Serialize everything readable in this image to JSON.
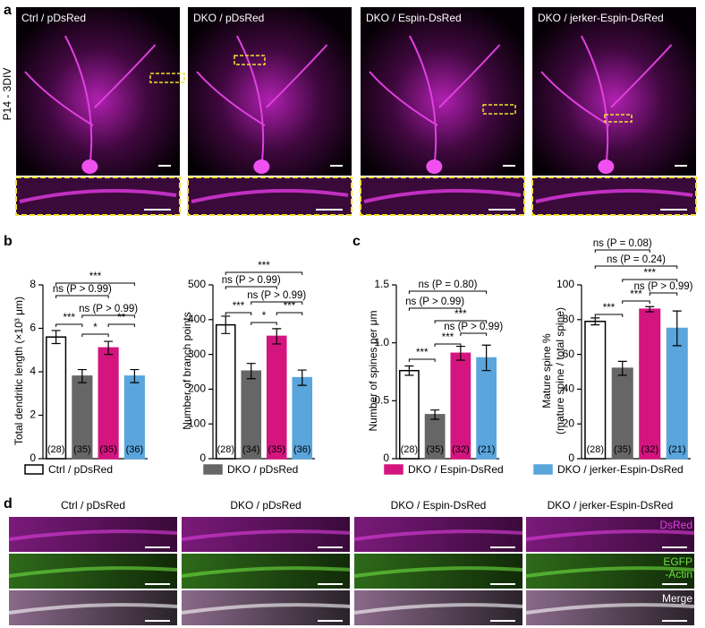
{
  "panel_labels": [
    "a",
    "b",
    "c",
    "d"
  ],
  "panel_a": {
    "side_label": "P14 - 3DIV",
    "titles": [
      "Ctrl / pDsRed",
      "DKO / pDsRed",
      "DKO / Espin-DsRed",
      "DKO / jerker-Espin-DsRed"
    ]
  },
  "legend": {
    "names": [
      "Ctrl / pDsRed",
      "DKO / pDsRed",
      "DKO / Espin-DsRed",
      "DKO / jerker-Espin-DsRed"
    ],
    "colors": [
      "#ffffff",
      "#666666",
      "#d4157f",
      "#5aa5dc"
    ]
  },
  "chart_data": [
    {
      "type": "bar",
      "ylabel": [
        "Total dendritic length (×10³ μm)"
      ],
      "ylim": [
        0,
        8
      ],
      "yticks": [
        0,
        2,
        4,
        6,
        8
      ],
      "values": [
        5.6,
        3.8,
        5.1,
        3.8
      ],
      "errors": [
        0.3,
        0.3,
        0.3,
        0.3
      ],
      "n_labels": [
        "(28)",
        "(35)",
        "(35)",
        "(36)"
      ],
      "annotations": [
        "***",
        "ns (P > 0.99)",
        "ns (P > 0.99)",
        "***",
        "*",
        "**"
      ]
    },
    {
      "type": "bar",
      "ylabel": [
        "Number of branch points"
      ],
      "ylim": [
        0,
        500
      ],
      "yticks": [
        0,
        100,
        200,
        300,
        400,
        500
      ],
      "values": [
        385,
        252,
        352,
        233
      ],
      "errors": [
        25,
        22,
        22,
        22
      ],
      "n_labels": [
        "(28)",
        "(34)",
        "(35)",
        "(36)"
      ],
      "annotations": [
        "***",
        "ns (P > 0.99)",
        "ns (P > 0.99)",
        "***",
        "*",
        "***"
      ]
    },
    {
      "type": "bar",
      "ylabel": [
        "Number of spines per μm"
      ],
      "ylim": [
        0,
        1.5
      ],
      "yticks": [
        0,
        0.5,
        {
          "value": 1,
          "label": "1.0"
        },
        1.5
      ],
      "values": [
        0.76,
        0.38,
        0.91,
        0.87
      ],
      "errors": [
        0.04,
        0.04,
        0.06,
        0.11
      ],
      "n_labels": [
        "(28)",
        "(35)",
        "(32)",
        "(21)"
      ],
      "annotations": [
        "ns (P = 0.80)",
        "ns (P > 0.99)",
        "***",
        "ns (P > 0.99)",
        "***",
        "***"
      ]
    },
    {
      "type": "bar",
      "ylabel": [
        "Mature spine %",
        "(mature spine / total spine)"
      ],
      "ylim": [
        0,
        100
      ],
      "yticks": [
        0,
        20,
        40,
        60,
        80,
        100
      ],
      "values": [
        79,
        52,
        86,
        75
      ],
      "errors": [
        2,
        4,
        1.5,
        10
      ],
      "n_labels": [
        "(28)",
        "(35)",
        "(32)",
        "(21)"
      ],
      "annotations": [
        "ns (P = 0.08)",
        "ns (P = 0.24)",
        "***",
        "***",
        "ns (P > 0.99)",
        "***"
      ]
    }
  ],
  "panel_d": {
    "columns": [
      "Ctrl / pDsRed",
      "DKO / pDsRed",
      "DKO / Espin-DsRed",
      "DKO / jerker-Espin-DsRed"
    ],
    "channels": [
      [
        "DsRed"
      ],
      [
        "EGFP",
        "-Actin"
      ],
      [
        "Merge"
      ]
    ]
  }
}
